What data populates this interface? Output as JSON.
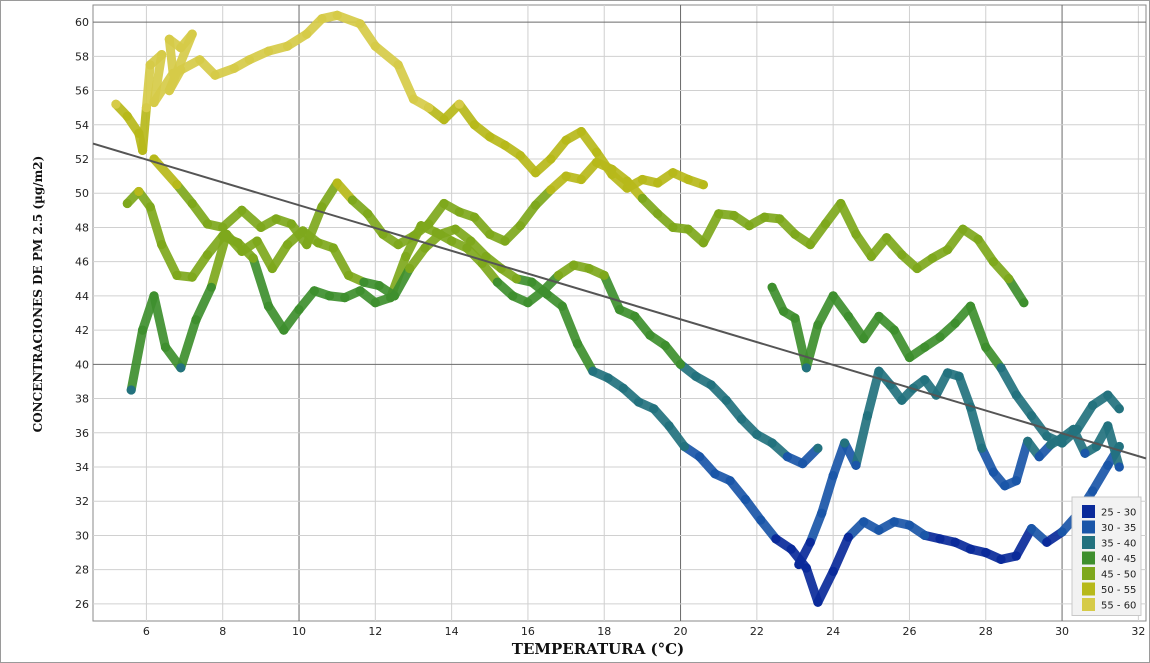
{
  "chart_data": {
    "type": "line",
    "xlabel": "TEMPERATURA (°C)",
    "ylabel": "CONCENTRACIONES DE PM 2.5 (µg/m2)",
    "xlim": [
      4.6,
      32.2
    ],
    "ylim": [
      25,
      61
    ],
    "x_ticks": [
      6,
      8,
      10,
      12,
      14,
      16,
      18,
      20,
      22,
      24,
      26,
      28,
      30,
      32
    ],
    "y_ticks": [
      26,
      28,
      30,
      32,
      34,
      36,
      38,
      40,
      42,
      44,
      46,
      48,
      50,
      52,
      54,
      56,
      58,
      60
    ],
    "major_grid_x": [
      10,
      20,
      30
    ],
    "major_grid_y": [
      40,
      60
    ],
    "grid": true,
    "color_scale": [
      {
        "label": "25 - 30",
        "min": 25,
        "max": 30,
        "color": "#0a2a9a"
      },
      {
        "label": "30 - 35",
        "min": 30,
        "max": 35,
        "color": "#1a56a8"
      },
      {
        "label": "35 - 40",
        "min": 35,
        "max": 40,
        "color": "#23727e"
      },
      {
        "label": "40 - 45",
        "min": 40,
        "max": 45,
        "color": "#3e8f2e"
      },
      {
        "label": "45 - 50",
        "min": 45,
        "max": 50,
        "color": "#7ea81c"
      },
      {
        "label": "50 - 55",
        "min": 50,
        "max": 55,
        "color": "#b7b91a"
      },
      {
        "label": "55 - 60",
        "min": 55,
        "max": 60,
        "color": "#d6cb48"
      }
    ],
    "legend_position": "bottom-right",
    "trendline": {
      "x": [
        4.6,
        32.2
      ],
      "y": [
        52.9,
        34.5
      ],
      "color": "#555555"
    },
    "series": [
      {
        "x": [
          5.2,
          5.5,
          5.8,
          5.9,
          6.0,
          6.1,
          6.4,
          6.2,
          6.7,
          6.6,
          6.9,
          7.2,
          6.6,
          6.9,
          7.4,
          7.8,
          8.3,
          8.7,
          9.2,
          9.7,
          10.2,
          10.6,
          11.0,
          11.6,
          12.0,
          12.6,
          13.0,
          13.4,
          13.8,
          14.2,
          14.6,
          15.0,
          15.4,
          15.8,
          16.2,
          16.6,
          17.0,
          17.4,
          17.8,
          18.2,
          18.6,
          19.0,
          19.4,
          19.8,
          20.2,
          20.6
        ],
        "y": [
          55.2,
          54.5,
          53.5,
          52.5,
          55.0,
          57.5,
          58.1,
          55.3,
          57.0,
          59.0,
          58.5,
          59.3,
          56.0,
          57.2,
          57.8,
          56.9,
          57.3,
          57.8,
          58.3,
          58.6,
          59.3,
          60.2,
          60.4,
          59.9,
          58.6,
          57.5,
          55.5,
          55.0,
          54.3,
          55.2,
          54.0,
          53.3,
          52.8,
          52.2,
          51.2,
          52.0,
          53.1,
          53.6,
          52.4,
          51.1,
          50.3,
          50.8,
          50.6,
          51.2,
          50.8,
          50.5
        ]
      },
      {
        "x": [
          6.2,
          6.8,
          7.2,
          7.6,
          8.0,
          8.5,
          9.0,
          9.4,
          9.8,
          10.2,
          10.6,
          11.0,
          11.4,
          11.8,
          12.2,
          12.6,
          13.0,
          13.4,
          13.8,
          14.2,
          14.6,
          15.0,
          15.4,
          15.8,
          16.2,
          16.6,
          17.0,
          17.4,
          17.8,
          18.2,
          18.6,
          19.0,
          19.4,
          19.8,
          20.2,
          20.6,
          21.0,
          21.4,
          21.8,
          22.2,
          22.6,
          23.0,
          23.4,
          23.8,
          24.2,
          24.6,
          25.0,
          25.4,
          25.8,
          26.2,
          26.6,
          27.0,
          27.4,
          27.8,
          28.2,
          28.6,
          29.0
        ],
        "y": [
          52.0,
          50.5,
          49.4,
          48.2,
          48.0,
          49.0,
          48.0,
          48.5,
          48.2,
          47.0,
          49.2,
          50.6,
          49.6,
          48.8,
          47.6,
          47.0,
          47.5,
          48.2,
          49.4,
          48.9,
          48.6,
          47.6,
          47.2,
          48.1,
          49.3,
          50.2,
          51.0,
          50.8,
          51.8,
          51.4,
          50.7,
          49.7,
          48.8,
          48.0,
          47.9,
          47.1,
          48.8,
          48.7,
          48.1,
          48.6,
          48.5,
          47.6,
          47.0,
          48.2,
          49.4,
          47.6,
          46.3,
          47.4,
          46.4,
          45.6,
          46.2,
          46.7,
          47.9,
          47.3,
          46.0,
          45.0,
          43.6
        ]
      },
      {
        "x": [
          5.5,
          5.8,
          6.1,
          6.4,
          6.8,
          7.2,
          7.6,
          8.0,
          8.4,
          8.8,
          9.2,
          9.6,
          10.0,
          10.4,
          10.8,
          11.2,
          11.6,
          12.0,
          12.4,
          12.8,
          13.2,
          13.6,
          14.0,
          14.4,
          14.8,
          15.2,
          15.6,
          16.0,
          16.4,
          16.8,
          17.2,
          17.6,
          18.0,
          18.4,
          18.8,
          19.2,
          19.6,
          20.0,
          20.4,
          20.8,
          21.2,
          21.6,
          22.0,
          22.4,
          22.8,
          23.2,
          23.6
        ],
        "y": [
          49.4,
          50.1,
          49.2,
          47.0,
          45.2,
          45.1,
          46.4,
          47.5,
          47.1,
          46.2,
          43.4,
          42.0,
          43.2,
          44.3,
          44.0,
          43.9,
          44.3,
          43.6,
          43.9,
          46.3,
          48.1,
          47.7,
          47.2,
          46.8,
          45.9,
          44.8,
          44.0,
          43.6,
          44.3,
          45.2,
          45.8,
          45.6,
          45.2,
          43.2,
          42.8,
          41.7,
          41.1,
          40.0,
          39.3,
          38.8,
          37.9,
          36.8,
          35.9,
          35.4,
          34.6,
          34.2,
          35.1
        ]
      },
      {
        "x": [
          5.6,
          5.9,
          6.2,
          6.5,
          6.9,
          7.3,
          7.7,
          8.1,
          8.5,
          8.9,
          9.3,
          9.7,
          10.1,
          10.5,
          10.9,
          11.3,
          11.7,
          12.1,
          12.5,
          12.9,
          13.3,
          13.7,
          14.1,
          14.5,
          14.9,
          15.3,
          15.7,
          16.1,
          16.5,
          16.9,
          17.3,
          17.7,
          18.1,
          18.5,
          18.9,
          19.3,
          19.7,
          20.1,
          20.5,
          20.9,
          21.3,
          21.7,
          22.1,
          22.5,
          22.9,
          23.3,
          23.6,
          24.0,
          24.4,
          24.8,
          25.2,
          25.6,
          26.0,
          26.4,
          26.8,
          27.2,
          27.6,
          28.0,
          28.4,
          28.8,
          29.2,
          29.6,
          30.0,
          30.4,
          30.8,
          31.2,
          31.5
        ],
        "y": [
          38.5,
          42.0,
          44.0,
          41.0,
          39.8,
          42.6,
          44.5,
          47.6,
          46.6,
          47.2,
          45.6,
          47.0,
          47.8,
          47.1,
          46.8,
          45.2,
          44.8,
          44.6,
          44.0,
          45.6,
          46.8,
          47.6,
          47.9,
          47.2,
          46.3,
          45.6,
          45.0,
          44.8,
          44.1,
          43.4,
          41.2,
          39.6,
          39.2,
          38.6,
          37.8,
          37.4,
          36.4,
          35.2,
          34.6,
          33.6,
          33.2,
          32.1,
          30.9,
          29.8,
          29.2,
          28.1,
          26.1,
          27.9,
          29.9,
          30.8,
          30.3,
          30.8,
          30.6,
          30.0,
          29.8,
          29.6,
          29.2,
          29.0,
          28.6,
          28.8,
          30.4,
          29.6,
          30.2,
          31.2,
          32.6,
          34.1,
          35.2
        ]
      },
      {
        "x": [
          22.4,
          22.7,
          23.0,
          23.3,
          23.6,
          24.0,
          24.4,
          24.8,
          25.2,
          25.6,
          26.0,
          26.4,
          26.8,
          27.2,
          27.6,
          28.0,
          28.4,
          28.8,
          29.2,
          29.6,
          30.0,
          30.4,
          30.8,
          31.2,
          31.5
        ],
        "y": [
          44.5,
          43.1,
          42.7,
          39.8,
          42.3,
          44.0,
          42.8,
          41.5,
          42.8,
          42.0,
          40.4,
          41.0,
          41.6,
          42.4,
          43.4,
          41.0,
          39.8,
          38.2,
          37.0,
          35.8,
          35.4,
          36.2,
          37.6,
          38.2,
          37.4
        ]
      },
      {
        "x": [
          23.1,
          23.4,
          23.7,
          24.0,
          24.3,
          24.6,
          24.9,
          25.2,
          25.5,
          25.8,
          26.1,
          26.4,
          26.7,
          27.0,
          27.3,
          27.6,
          27.9,
          28.2,
          28.5,
          28.8,
          29.1,
          29.4,
          29.7,
          30.0,
          30.3,
          30.6,
          30.9,
          31.2,
          31.5
        ],
        "y": [
          28.3,
          29.6,
          31.3,
          33.5,
          35.4,
          34.1,
          37.0,
          39.6,
          38.8,
          37.9,
          38.6,
          39.1,
          38.2,
          39.5,
          39.3,
          37.5,
          35.1,
          33.7,
          32.9,
          33.2,
          35.5,
          34.6,
          35.3,
          35.7,
          36.2,
          34.8,
          35.2,
          36.4,
          34.0
        ]
      }
    ]
  }
}
